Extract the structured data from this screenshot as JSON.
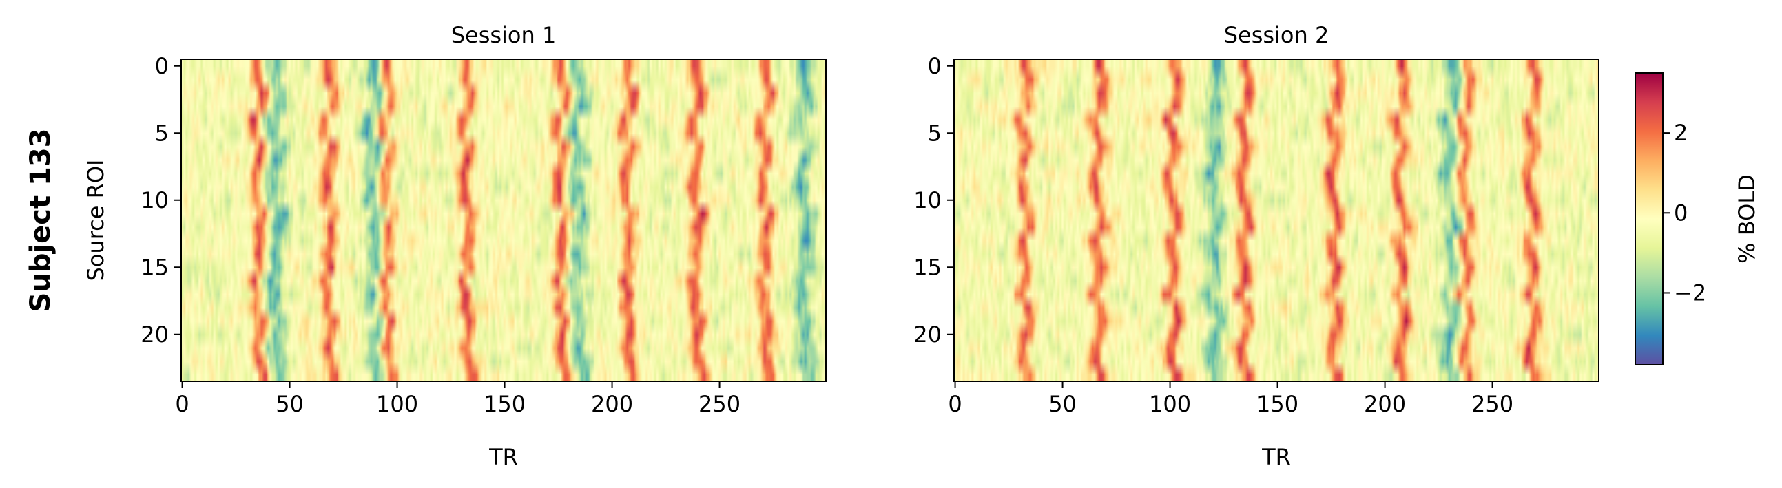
{
  "figure": {
    "row_label": "Subject 133",
    "colorbar": {
      "label": "% BOLD",
      "ticks": [
        -2,
        0,
        2
      ],
      "vmin": -3.8,
      "vmax": 3.5,
      "colormap": "Spectral_r"
    }
  },
  "chart_data": [
    {
      "type": "heatmap",
      "title": "Session 1",
      "xlabel": "TR",
      "ylabel": "Source ROI",
      "xlim": [
        0,
        299
      ],
      "ylim": [
        23,
        0
      ],
      "xticks": [
        0,
        50,
        100,
        150,
        200,
        250
      ],
      "yticks": [
        0,
        5,
        10,
        15,
        20
      ],
      "n_rois": 24,
      "n_trs": 300,
      "peak_trs": [
        36,
        69,
        96,
        133,
        177,
        208,
        240,
        272
      ],
      "trough_trs": [
        44,
        90,
        185,
        290
      ]
    },
    {
      "type": "heatmap",
      "title": "Session 2",
      "xlabel": "TR",
      "ylabel": "",
      "xlim": [
        0,
        299
      ],
      "ylim": [
        23,
        0
      ],
      "xticks": [
        0,
        50,
        100,
        150,
        200,
        250
      ],
      "yticks": [
        0,
        5,
        10,
        15,
        20
      ],
      "n_rois": 24,
      "n_trs": 300,
      "peak_trs": [
        32,
        66,
        101,
        134,
        176,
        207,
        237,
        268
      ],
      "trough_trs": [
        120,
        230
      ]
    }
  ]
}
